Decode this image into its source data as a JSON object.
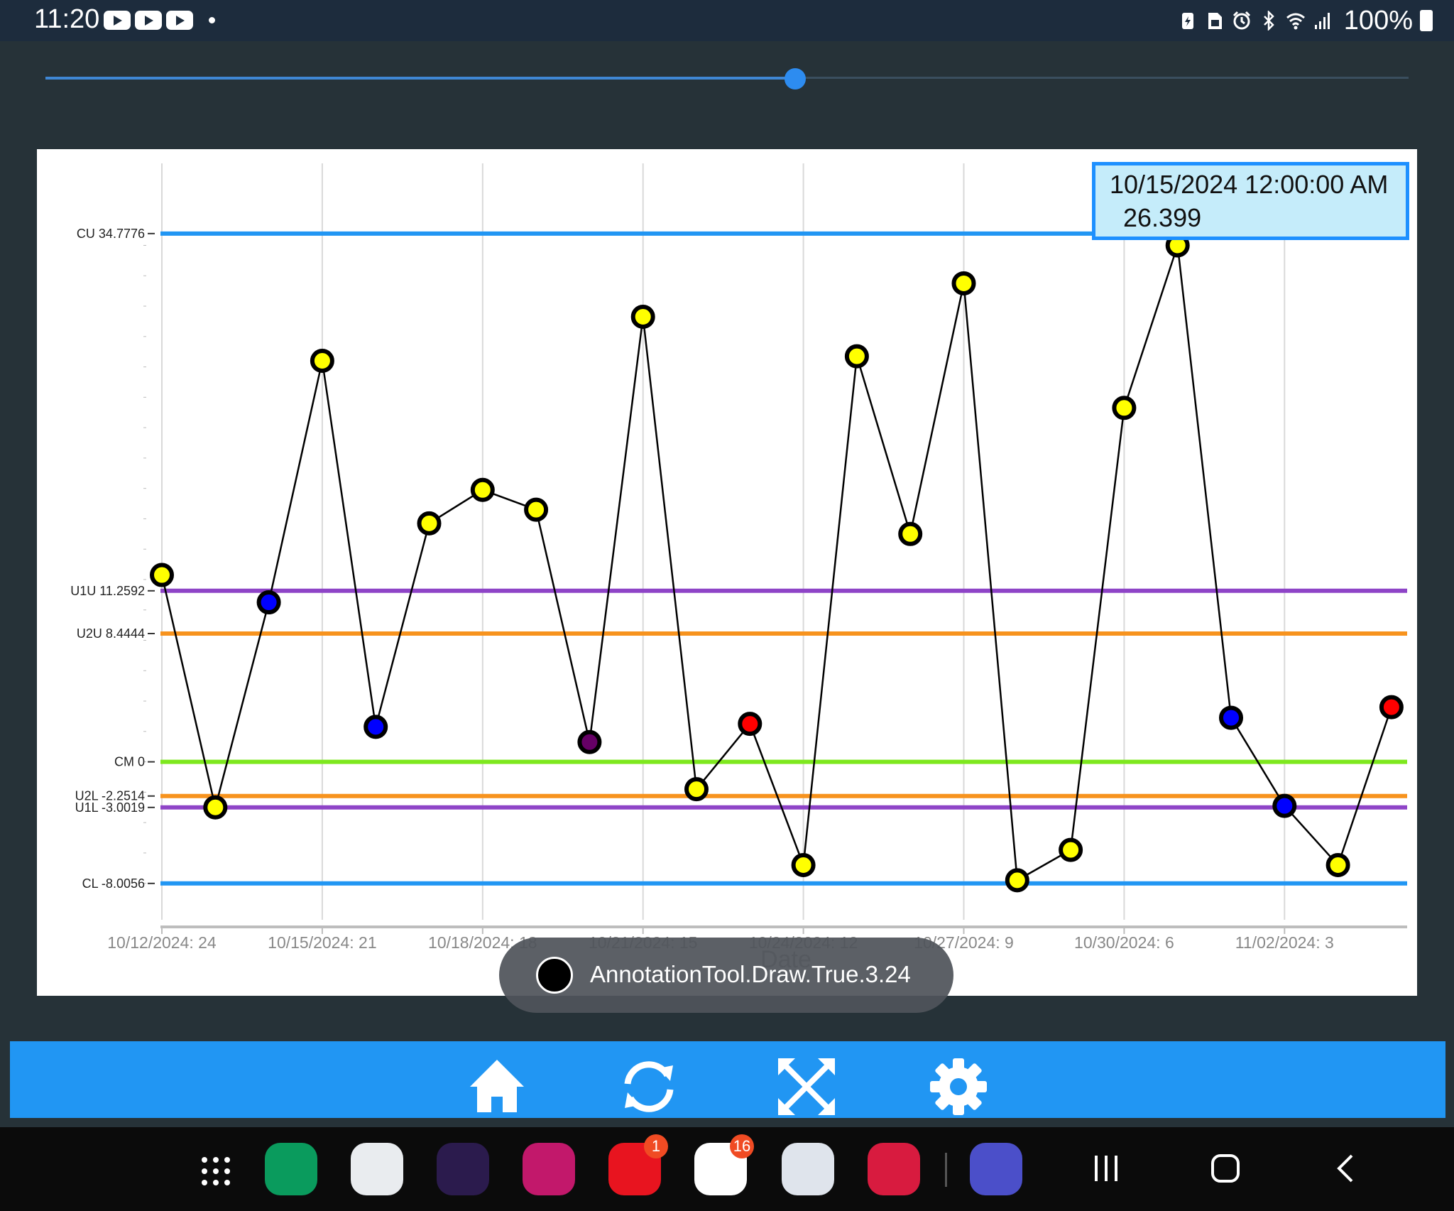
{
  "status_bar": {
    "time": "11:20",
    "notification_icons": [
      "youtube-icon",
      "youtube-icon",
      "youtube-icon"
    ],
    "system_icons": [
      "battery-saver-icon",
      "sim-icon",
      "alarm-icon",
      "bluetooth-icon",
      "wifi-icon",
      "signal-icon"
    ],
    "battery": "100%"
  },
  "slider": {
    "value": 0.55
  },
  "tooltip": {
    "date": "10/15/2024 12:00:00 AM",
    "value": "26.399"
  },
  "chart_data": {
    "type": "line",
    "xlabel": "Date",
    "x_tick_labels": [
      "10/12/2024: 24",
      "10/15/2024: 21",
      "10/18/2024: 18",
      "10/21/2024: 15",
      "10/24/2024: 12",
      "10/27/2024: 9",
      "10/30/2024: 6",
      "11/02/2024: 3"
    ],
    "ylim": [
      -10.4,
      39.4
    ],
    "control_lines": [
      {
        "label": "CU 34.7776",
        "value": 34.7776,
        "color": "#2196f3"
      },
      {
        "label": "U1U 11.2592",
        "value": 11.2592,
        "color": "#8e44c7"
      },
      {
        "label": "U2U 8.4444",
        "value": 8.4444,
        "color": "#f7931e"
      },
      {
        "label": "CM 0",
        "value": 0,
        "color": "#7ee81e"
      },
      {
        "label": "U2L -2.2514",
        "value": -2.2514,
        "color": "#f7931e"
      },
      {
        "label": "U1L -3.0019",
        "value": -3.0019,
        "color": "#8e44c7"
      },
      {
        "label": "CL -8.0056",
        "value": -8.0056,
        "color": "#2196f3"
      }
    ],
    "series": [
      {
        "x": [
          "10/12/2024",
          "10/13/2024",
          "10/14/2024",
          "10/15/2024",
          "10/16/2024",
          "10/17/2024",
          "10/18/2024",
          "10/19/2024",
          "10/20/2024",
          "10/21/2024",
          "10/22/2024",
          "10/23/2024",
          "10/24/2024",
          "10/25/2024",
          "10/26/2024",
          "10/27/2024",
          "10/28/2024",
          "10/29/2024",
          "10/30/2024",
          "10/31/2024",
          "11/01/2024",
          "11/02/2024",
          "11/03/2024",
          "11/04/2024"
        ],
        "values": [
          12.3,
          -3.0,
          10.5,
          26.4,
          2.3,
          15.7,
          17.9,
          16.6,
          1.3,
          29.3,
          -1.8,
          2.5,
          -6.8,
          26.7,
          15.0,
          31.5,
          -7.8,
          -5.8,
          23.3,
          34.0,
          2.9,
          -2.9,
          -6.8,
          3.6
        ],
        "point_colors": [
          "#ffff00",
          "#ffff00",
          "#0000ff",
          "#ffff00",
          "#0000ff",
          "#ffff00",
          "#ffff00",
          "#ffff00",
          "#660066",
          "#ffff00",
          "#ffff00",
          "#ff0000",
          "#ffff00",
          "#ffff00",
          "#ffff00",
          "#ffff00",
          "#ffff00",
          "#ffff00",
          "#ffff00",
          "#ffff00",
          "#0000ff",
          "#0000ff",
          "#ffff00",
          "#ff0000"
        ]
      }
    ],
    "grid": "vertical",
    "line_color": "#000000"
  },
  "toast": {
    "text": "AnnotationTool.Draw.True.3.24"
  },
  "toolbar": {
    "buttons": [
      "home-icon",
      "refresh-icon",
      "fullscreen-icon",
      "settings-icon"
    ],
    "color": "#2196f3"
  },
  "dock": {
    "apps": [
      {
        "name": "phone-app-icon",
        "color": "#0a9b5d"
      },
      {
        "name": "maps-app-icon",
        "color": "#e9ecef"
      },
      {
        "name": "firefox-app-icon",
        "color": "#2b1b4d"
      },
      {
        "name": "gallery-app-icon",
        "color": "#c2186b"
      },
      {
        "name": "app-folder-icon",
        "color": "#e8141f",
        "badge": "1"
      },
      {
        "name": "youtube-app-icon",
        "color": "#ffffff",
        "badge": "16"
      },
      {
        "name": "messages-app-icon",
        "color": "#dfe4ec"
      },
      {
        "name": "camera-app-icon",
        "color": "#d81b3f"
      },
      {
        "name": "clock-app-icon",
        "color": "#4b4fc9"
      }
    ]
  }
}
